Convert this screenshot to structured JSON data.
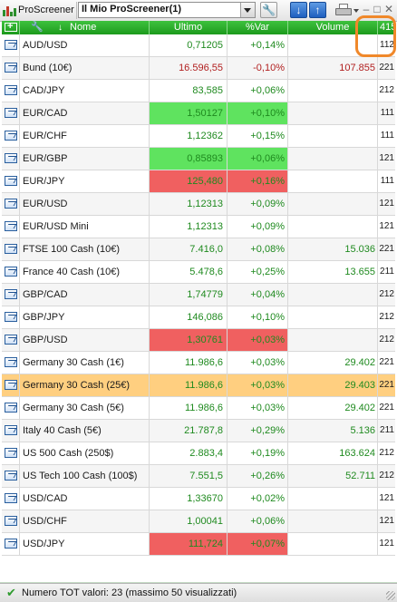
{
  "toolbar": {
    "app_title": "ProScreener",
    "screener_name": "Il Mio ProScreener(1)"
  },
  "colors": {
    "header_green": "#2aa82a",
    "up_text": "#1f8a1f",
    "down_text": "#b11f1f",
    "cell_up_bg": "#5fe35f",
    "cell_down_bg": "#f06060",
    "highlight_row": "#ffcf80",
    "annotation": "#f0882a"
  },
  "icons": [
    "app-chart-icon",
    "chevron-down-icon",
    "wrench-icon",
    "arrow-down-icon",
    "arrow-up-icon",
    "printer-icon",
    "minimize-icon",
    "maximize-icon",
    "close-icon",
    "chart-icon",
    "check-icon"
  ],
  "header": {
    "name": "Nome",
    "last": "Ultimo",
    "var": "%Var",
    "volume": "Volume",
    "code": "415"
  },
  "rows": [
    {
      "name": "AUD/USD",
      "last": "0,71205",
      "var": "+0,14%",
      "volume": "",
      "code": "112",
      "dir": "up"
    },
    {
      "name": "Bund (10€)",
      "last": "16.596,55",
      "var": "-0,10%",
      "volume": "107.855",
      "code": "221",
      "dir": "down"
    },
    {
      "name": "CAD/JPY",
      "last": "83,585",
      "var": "+0,06%",
      "volume": "",
      "code": "212",
      "dir": "up"
    },
    {
      "name": "EUR/CAD",
      "last": "1,50127",
      "var": "+0,10%",
      "volume": "",
      "code": "111",
      "dir": "up",
      "flash": "up"
    },
    {
      "name": "EUR/CHF",
      "last": "1,12362",
      "var": "+0,15%",
      "volume": "",
      "code": "111",
      "dir": "up"
    },
    {
      "name": "EUR/GBP",
      "last": "0,85893",
      "var": "+0,06%",
      "volume": "",
      "code": "121",
      "dir": "up",
      "flash": "up"
    },
    {
      "name": "EUR/JPY",
      "last": "125,480",
      "var": "+0,16%",
      "volume": "",
      "code": "111",
      "dir": "up",
      "flash": "down"
    },
    {
      "name": "EUR/USD",
      "last": "1,12313",
      "var": "+0,09%",
      "volume": "",
      "code": "121",
      "dir": "up"
    },
    {
      "name": "EUR/USD Mini",
      "last": "1,12313",
      "var": "+0,09%",
      "volume": "",
      "code": "121",
      "dir": "up"
    },
    {
      "name": "FTSE 100 Cash (10€)",
      "last": "7.416,0",
      "var": "+0,08%",
      "volume": "15.036",
      "code": "221",
      "dir": "up"
    },
    {
      "name": "France 40 Cash (10€)",
      "last": "5.478,6",
      "var": "+0,25%",
      "volume": "13.655",
      "code": "211",
      "dir": "up"
    },
    {
      "name": "GBP/CAD",
      "last": "1,74779",
      "var": "+0,04%",
      "volume": "",
      "code": "212",
      "dir": "up"
    },
    {
      "name": "GBP/JPY",
      "last": "146,086",
      "var": "+0,10%",
      "volume": "",
      "code": "212",
      "dir": "up"
    },
    {
      "name": "GBP/USD",
      "last": "1,30761",
      "var": "+0,03%",
      "volume": "",
      "code": "212",
      "dir": "up",
      "flash": "down"
    },
    {
      "name": "Germany 30 Cash (1€)",
      "last": "11.986,6",
      "var": "+0,03%",
      "volume": "29.402",
      "code": "221",
      "dir": "up"
    },
    {
      "name": "Germany 30 Cash (25€)",
      "last": "11.986,6",
      "var": "+0,03%",
      "volume": "29.403",
      "code": "221",
      "dir": "up",
      "highlight": true
    },
    {
      "name": "Germany 30 Cash (5€)",
      "last": "11.986,6",
      "var": "+0,03%",
      "volume": "29.402",
      "code": "221",
      "dir": "up"
    },
    {
      "name": "Italy 40 Cash (5€)",
      "last": "21.787,8",
      "var": "+0,29%",
      "volume": "5.136",
      "code": "211",
      "dir": "up"
    },
    {
      "name": "US 500 Cash (250$)",
      "last": "2.883,4",
      "var": "+0,19%",
      "volume": "163.624",
      "code": "212",
      "dir": "up"
    },
    {
      "name": "US Tech 100 Cash (100$)",
      "last": "7.551,5",
      "var": "+0,26%",
      "volume": "52.711",
      "code": "212",
      "dir": "up"
    },
    {
      "name": "USD/CAD",
      "last": "1,33670",
      "var": "+0,02%",
      "volume": "",
      "code": "121",
      "dir": "up"
    },
    {
      "name": "USD/CHF",
      "last": "1,00041",
      "var": "+0,06%",
      "volume": "",
      "code": "121",
      "dir": "up"
    },
    {
      "name": "USD/JPY",
      "last": "111,724",
      "var": "+0,07%",
      "volume": "",
      "code": "121",
      "dir": "up",
      "flash": "down"
    }
  ],
  "status": {
    "text": "Numero TOT valori: 23 (massimo 50 visualizzati)"
  }
}
